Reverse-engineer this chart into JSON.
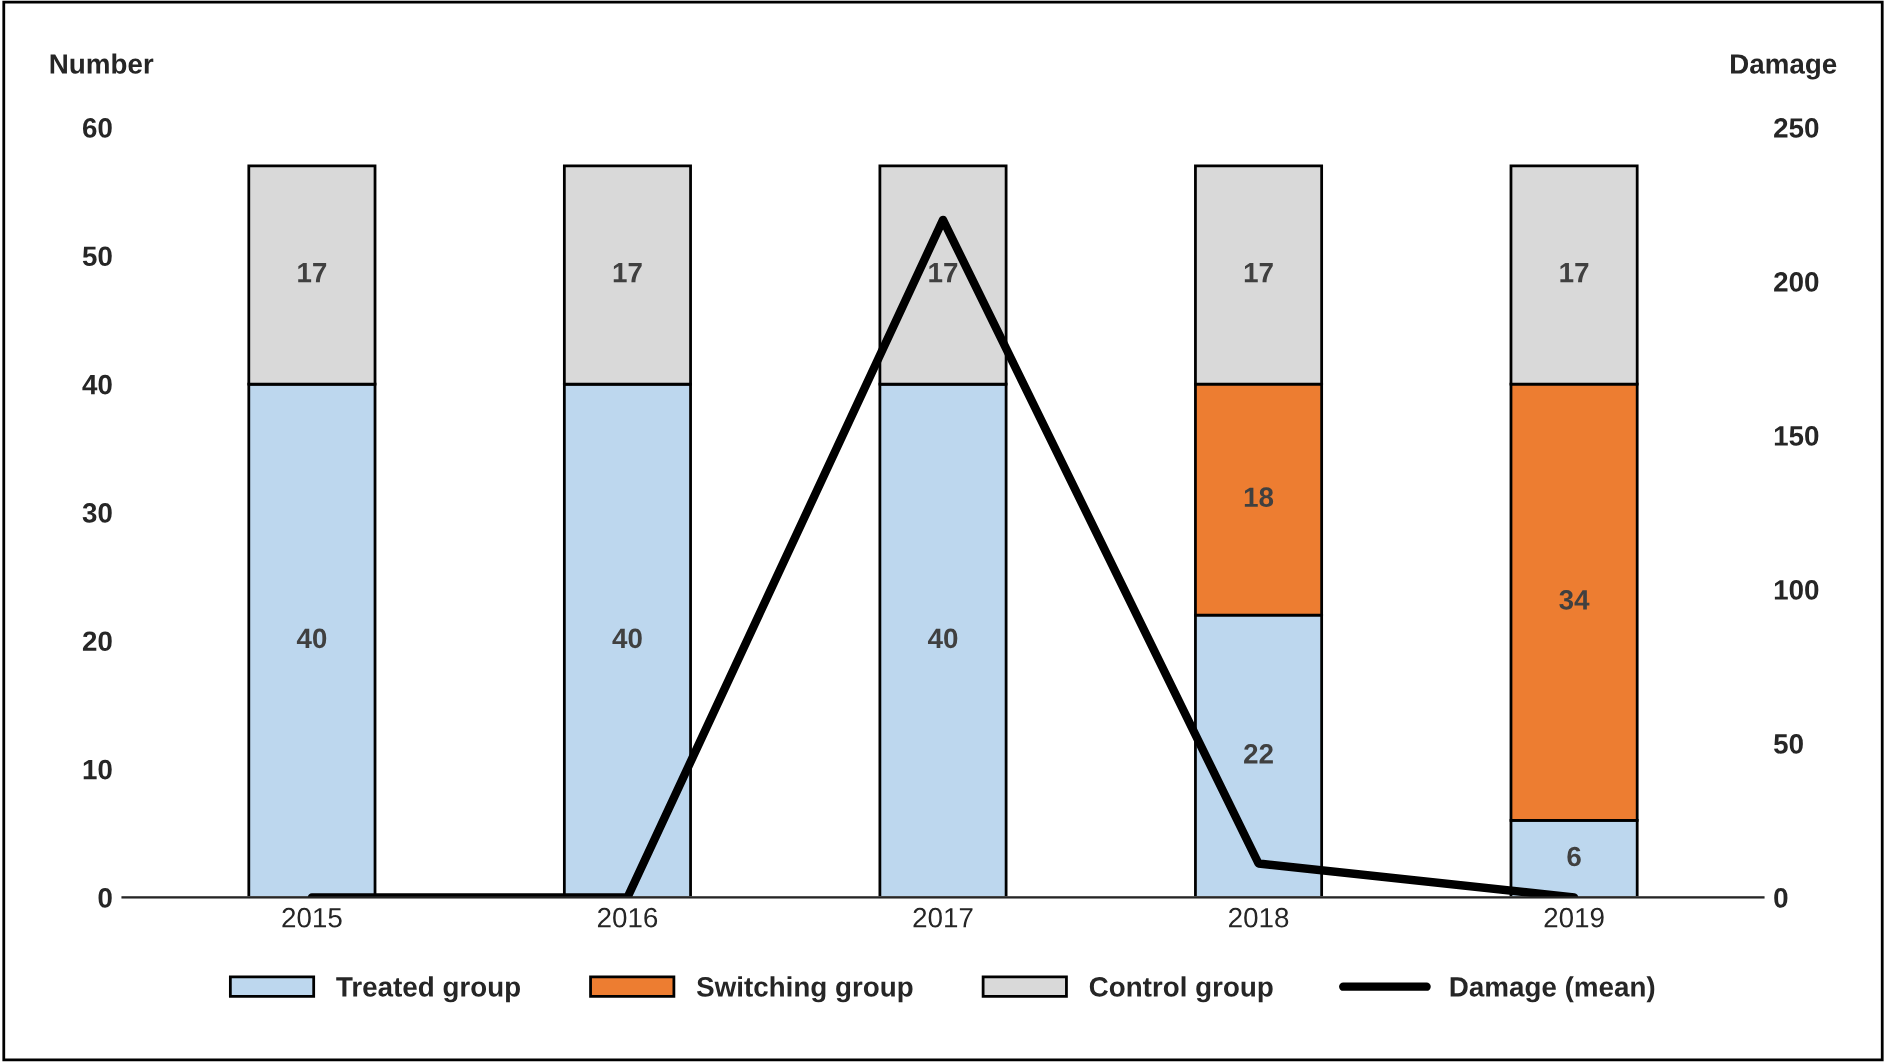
{
  "chart_data": {
    "type": "bar",
    "stacked": true,
    "ylabel": "Number",
    "y2label": "Damage",
    "categories": [
      "2015",
      "2016",
      "2017",
      "2018",
      "2019"
    ],
    "series": [
      {
        "name": "Treated group",
        "color": "#bdd7ee",
        "values": [
          40,
          40,
          40,
          22,
          6
        ],
        "value_labels": [
          "40",
          "40",
          "40",
          "22",
          "6"
        ]
      },
      {
        "name": "Switching group",
        "color": "#ed7d31",
        "values": [
          0,
          0,
          0,
          18,
          34
        ],
        "value_labels": [
          null,
          null,
          null,
          "18",
          "34"
        ]
      },
      {
        "name": "Control group",
        "color": "#d9d9d9",
        "values": [
          17,
          17,
          17,
          17,
          17
        ],
        "value_labels": [
          "17",
          "17",
          "17",
          "17",
          "17"
        ]
      },
      {
        "name": "Damage (mean)",
        "color": "#000000",
        "type": "line",
        "axis": "y2",
        "values": [
          0,
          0,
          220,
          11,
          0
        ]
      }
    ],
    "ylim": [
      0,
      60
    ],
    "yticks": [
      0,
      10,
      20,
      30,
      40,
      50,
      60
    ],
    "y2lim": [
      0,
      250
    ],
    "y2ticks": [
      0,
      50,
      100,
      150,
      200,
      250
    ],
    "grid": false,
    "legend": "bottom"
  }
}
